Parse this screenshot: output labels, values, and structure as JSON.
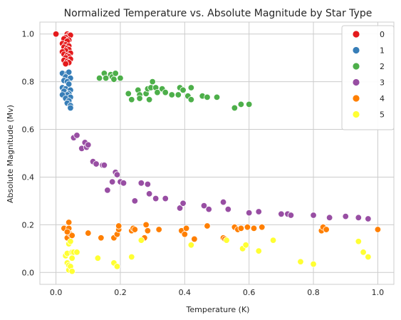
{
  "chart_data": {
    "type": "scatter",
    "title": "Normalized Temperature vs. Absolute Magnitude by Star Type",
    "xlabel": "Temperature (K)",
    "ylabel": "Absolute Magnitude (Mv)",
    "xlim": [
      -0.05,
      1.05
    ],
    "ylim": [
      -0.05,
      1.05
    ],
    "xticks": [
      "0.0",
      "0.2",
      "0.4",
      "0.6",
      "0.8",
      "1.0"
    ],
    "xtick_values": [
      0,
      0.2,
      0.4,
      0.6,
      0.8,
      1.0
    ],
    "yticks": [
      "0.0",
      "0.2",
      "0.4",
      "0.6",
      "0.8",
      "1.0"
    ],
    "ytick_values": [
      0,
      0.2,
      0.4,
      0.6,
      0.8,
      1.0
    ],
    "grid": true,
    "legend_position": "top-right",
    "series": [
      {
        "name": "0",
        "color": "#e41a1c",
        "points": [
          [
            0.0,
            1.0
          ],
          [
            0.035,
            1.0
          ],
          [
            0.04,
            0.995
          ],
          [
            0.045,
            0.995
          ],
          [
            0.03,
            0.985
          ],
          [
            0.025,
            0.98
          ],
          [
            0.04,
            0.975
          ],
          [
            0.035,
            0.97
          ],
          [
            0.02,
            0.96
          ],
          [
            0.03,
            0.955
          ],
          [
            0.04,
            0.95
          ],
          [
            0.025,
            0.945
          ],
          [
            0.035,
            0.94
          ],
          [
            0.04,
            0.935
          ],
          [
            0.03,
            0.93
          ],
          [
            0.02,
            0.925
          ],
          [
            0.045,
            0.92
          ],
          [
            0.025,
            0.915
          ],
          [
            0.035,
            0.91
          ],
          [
            0.04,
            0.905
          ],
          [
            0.03,
            0.9
          ],
          [
            0.045,
            0.895
          ],
          [
            0.025,
            0.89
          ],
          [
            0.035,
            0.885
          ],
          [
            0.04,
            0.88
          ],
          [
            0.03,
            0.875
          ]
        ]
      },
      {
        "name": "1",
        "color": "#377eb8",
        "points": [
          [
            0.02,
            0.835
          ],
          [
            0.035,
            0.835
          ],
          [
            0.04,
            0.84
          ],
          [
            0.03,
            0.82
          ],
          [
            0.045,
            0.815
          ],
          [
            0.025,
            0.805
          ],
          [
            0.035,
            0.8
          ],
          [
            0.04,
            0.79
          ],
          [
            0.02,
            0.775
          ],
          [
            0.03,
            0.77
          ],
          [
            0.045,
            0.765
          ],
          [
            0.025,
            0.76
          ],
          [
            0.04,
            0.75
          ],
          [
            0.035,
            0.745
          ],
          [
            0.02,
            0.745
          ],
          [
            0.045,
            0.735
          ],
          [
            0.03,
            0.73
          ],
          [
            0.04,
            0.72
          ],
          [
            0.035,
            0.71
          ],
          [
            0.045,
            0.7
          ],
          [
            0.045,
            0.69
          ]
        ]
      },
      {
        "name": "2",
        "color": "#4daf4a",
        "points": [
          [
            0.135,
            0.815
          ],
          [
            0.15,
            0.835
          ],
          [
            0.155,
            0.815
          ],
          [
            0.17,
            0.83
          ],
          [
            0.175,
            0.82
          ],
          [
            0.18,
            0.81
          ],
          [
            0.185,
            0.835
          ],
          [
            0.2,
            0.815
          ],
          [
            0.225,
            0.75
          ],
          [
            0.235,
            0.725
          ],
          [
            0.255,
            0.765
          ],
          [
            0.26,
            0.745
          ],
          [
            0.26,
            0.73
          ],
          [
            0.28,
            0.75
          ],
          [
            0.285,
            0.77
          ],
          [
            0.29,
            0.725
          ],
          [
            0.295,
            0.775
          ],
          [
            0.3,
            0.8
          ],
          [
            0.31,
            0.775
          ],
          [
            0.315,
            0.755
          ],
          [
            0.33,
            0.77
          ],
          [
            0.34,
            0.755
          ],
          [
            0.36,
            0.745
          ],
          [
            0.38,
            0.745
          ],
          [
            0.385,
            0.775
          ],
          [
            0.395,
            0.765
          ],
          [
            0.41,
            0.74
          ],
          [
            0.42,
            0.775
          ],
          [
            0.42,
            0.725
          ],
          [
            0.455,
            0.74
          ],
          [
            0.47,
            0.735
          ],
          [
            0.5,
            0.735
          ],
          [
            0.555,
            0.69
          ],
          [
            0.575,
            0.705
          ],
          [
            0.6,
            0.705
          ]
        ]
      },
      {
        "name": "3",
        "color": "#984ea3",
        "points": [
          [
            0.055,
            0.565
          ],
          [
            0.065,
            0.575
          ],
          [
            0.08,
            0.52
          ],
          [
            0.09,
            0.545
          ],
          [
            0.095,
            0.525
          ],
          [
            0.1,
            0.535
          ],
          [
            0.115,
            0.465
          ],
          [
            0.125,
            0.455
          ],
          [
            0.145,
            0.45
          ],
          [
            0.15,
            0.45
          ],
          [
            0.16,
            0.345
          ],
          [
            0.175,
            0.38
          ],
          [
            0.185,
            0.42
          ],
          [
            0.19,
            0.41
          ],
          [
            0.2,
            0.38
          ],
          [
            0.21,
            0.375
          ],
          [
            0.245,
            0.3
          ],
          [
            0.265,
            0.375
          ],
          [
            0.285,
            0.37
          ],
          [
            0.29,
            0.33
          ],
          [
            0.31,
            0.31
          ],
          [
            0.34,
            0.31
          ],
          [
            0.385,
            0.27
          ],
          [
            0.395,
            0.29
          ],
          [
            0.46,
            0.28
          ],
          [
            0.475,
            0.265
          ],
          [
            0.52,
            0.295
          ],
          [
            0.535,
            0.265
          ],
          [
            0.6,
            0.25
          ],
          [
            0.63,
            0.255
          ],
          [
            0.7,
            0.245
          ],
          [
            0.72,
            0.245
          ],
          [
            0.73,
            0.24
          ],
          [
            0.8,
            0.24
          ],
          [
            0.85,
            0.23
          ],
          [
            0.9,
            0.235
          ],
          [
            0.94,
            0.23
          ],
          [
            0.97,
            0.225
          ]
        ]
      },
      {
        "name": "4",
        "color": "#ff7f00",
        "points": [
          [
            0.025,
            0.185
          ],
          [
            0.035,
            0.145
          ],
          [
            0.04,
            0.185
          ],
          [
            0.04,
            0.21
          ],
          [
            0.045,
            0.16
          ],
          [
            0.05,
            0.155
          ],
          [
            0.035,
            0.17
          ],
          [
            0.1,
            0.165
          ],
          [
            0.14,
            0.145
          ],
          [
            0.18,
            0.145
          ],
          [
            0.19,
            0.16
          ],
          [
            0.195,
            0.18
          ],
          [
            0.195,
            0.195
          ],
          [
            0.235,
            0.175
          ],
          [
            0.24,
            0.185
          ],
          [
            0.245,
            0.18
          ],
          [
            0.275,
            0.145
          ],
          [
            0.28,
            0.2
          ],
          [
            0.285,
            0.175
          ],
          [
            0.32,
            0.18
          ],
          [
            0.39,
            0.175
          ],
          [
            0.4,
            0.16
          ],
          [
            0.405,
            0.185
          ],
          [
            0.43,
            0.14
          ],
          [
            0.47,
            0.195
          ],
          [
            0.52,
            0.145
          ],
          [
            0.525,
            0.14
          ],
          [
            0.555,
            0.19
          ],
          [
            0.565,
            0.18
          ],
          [
            0.575,
            0.185
          ],
          [
            0.595,
            0.19
          ],
          [
            0.615,
            0.185
          ],
          [
            0.64,
            0.19
          ],
          [
            0.825,
            0.175
          ],
          [
            0.83,
            0.19
          ],
          [
            0.84,
            0.18
          ],
          [
            1.0,
            0.18
          ]
        ]
      },
      {
        "name": "5",
        "color": "#ffff33",
        "points": [
          [
            0.03,
            0.07
          ],
          [
            0.035,
            0.04
          ],
          [
            0.035,
            0.08
          ],
          [
            0.04,
            0.03
          ],
          [
            0.04,
            0.01
          ],
          [
            0.04,
            0.12
          ],
          [
            0.045,
            0.13
          ],
          [
            0.045,
            0.025
          ],
          [
            0.05,
            0.06
          ],
          [
            0.05,
            0.005
          ],
          [
            0.05,
            0.085
          ],
          [
            0.055,
            0.085
          ],
          [
            0.065,
            0.085
          ],
          [
            0.13,
            0.06
          ],
          [
            0.18,
            0.04
          ],
          [
            0.19,
            0.025
          ],
          [
            0.235,
            0.065
          ],
          [
            0.265,
            0.135
          ],
          [
            0.42,
            0.115
          ],
          [
            0.53,
            0.135
          ],
          [
            0.58,
            0.1
          ],
          [
            0.59,
            0.115
          ],
          [
            0.63,
            0.09
          ],
          [
            0.675,
            0.135
          ],
          [
            0.76,
            0.045
          ],
          [
            0.8,
            0.035
          ],
          [
            0.94,
            0.13
          ],
          [
            0.955,
            0.085
          ],
          [
            0.97,
            0.065
          ]
        ]
      }
    ]
  }
}
